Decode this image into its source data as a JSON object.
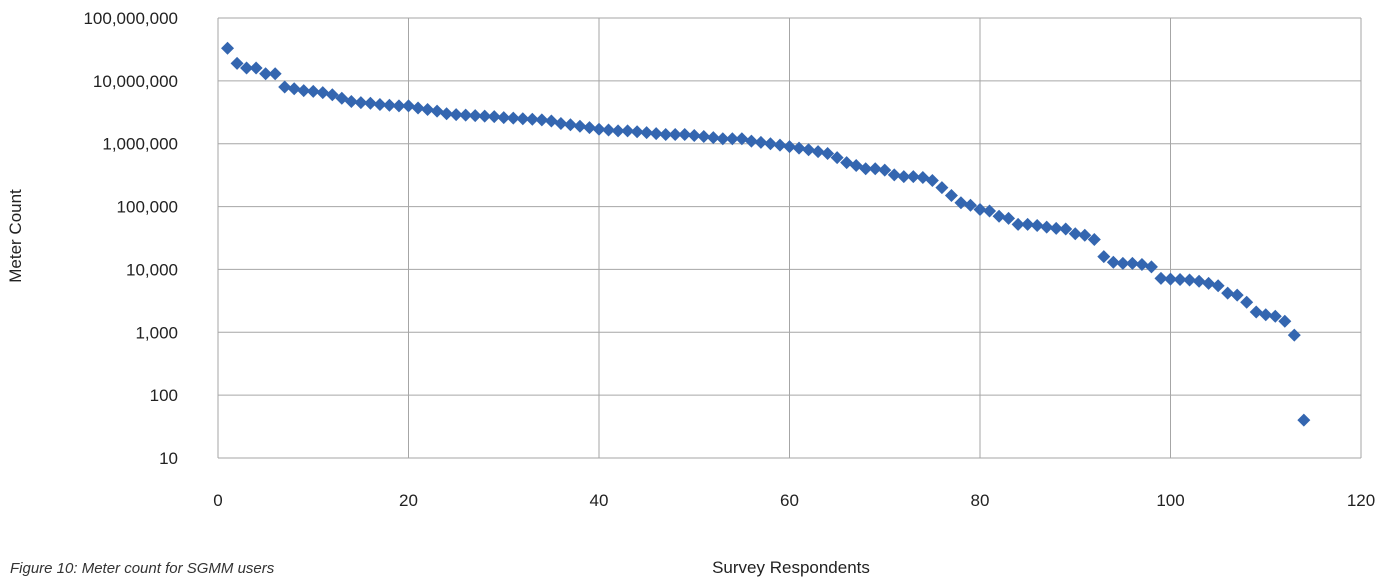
{
  "caption": "Figure 10: Meter count for SGMM users",
  "chart_data": {
    "type": "scatter",
    "xlabel": "Survey Respondents",
    "ylabel": "Meter Count",
    "y_scale": "log",
    "xlim": [
      0,
      120
    ],
    "ylim": [
      10,
      100000000
    ],
    "x_ticks": [
      0,
      20,
      40,
      60,
      80,
      100,
      120
    ],
    "x_tick_labels": [
      "0",
      "20",
      "40",
      "60",
      "80",
      "100",
      "120"
    ],
    "y_ticks": [
      10,
      100,
      1000,
      10000,
      100000,
      1000000,
      10000000,
      100000000
    ],
    "y_tick_labels": [
      "10",
      "100",
      "1,000",
      "10,000",
      "100,000",
      "1,000,000",
      "10,000,000",
      "100,000,000"
    ],
    "grid": true,
    "marker": "diamond",
    "color": "#3466B0",
    "points": [
      [
        1,
        33000000
      ],
      [
        2,
        19000000
      ],
      [
        3,
        16000000
      ],
      [
        4,
        16000000
      ],
      [
        5,
        13000000
      ],
      [
        6,
        13000000
      ],
      [
        7,
        8000000
      ],
      [
        8,
        7500000
      ],
      [
        9,
        7000000
      ],
      [
        10,
        6800000
      ],
      [
        11,
        6500000
      ],
      [
        12,
        6000000
      ],
      [
        13,
        5300000
      ],
      [
        14,
        4700000
      ],
      [
        15,
        4500000
      ],
      [
        16,
        4400000
      ],
      [
        17,
        4200000
      ],
      [
        18,
        4100000
      ],
      [
        19,
        4000000
      ],
      [
        20,
        4000000
      ],
      [
        21,
        3700000
      ],
      [
        22,
        3500000
      ],
      [
        23,
        3300000
      ],
      [
        24,
        3000000
      ],
      [
        25,
        2900000
      ],
      [
        26,
        2850000
      ],
      [
        27,
        2800000
      ],
      [
        28,
        2750000
      ],
      [
        29,
        2700000
      ],
      [
        30,
        2600000
      ],
      [
        31,
        2550000
      ],
      [
        32,
        2500000
      ],
      [
        33,
        2450000
      ],
      [
        34,
        2400000
      ],
      [
        35,
        2300000
      ],
      [
        36,
        2100000
      ],
      [
        37,
        2000000
      ],
      [
        38,
        1900000
      ],
      [
        39,
        1800000
      ],
      [
        40,
        1700000
      ],
      [
        41,
        1650000
      ],
      [
        42,
        1600000
      ],
      [
        43,
        1600000
      ],
      [
        44,
        1550000
      ],
      [
        45,
        1500000
      ],
      [
        46,
        1450000
      ],
      [
        47,
        1400000
      ],
      [
        48,
        1400000
      ],
      [
        49,
        1400000
      ],
      [
        50,
        1350000
      ],
      [
        51,
        1300000
      ],
      [
        52,
        1250000
      ],
      [
        53,
        1200000
      ],
      [
        54,
        1200000
      ],
      [
        55,
        1200000
      ],
      [
        56,
        1100000
      ],
      [
        57,
        1050000
      ],
      [
        58,
        1000000
      ],
      [
        59,
        950000
      ],
      [
        60,
        900000
      ],
      [
        61,
        850000
      ],
      [
        62,
        800000
      ],
      [
        63,
        750000
      ],
      [
        64,
        700000
      ],
      [
        65,
        600000
      ],
      [
        66,
        500000
      ],
      [
        67,
        450000
      ],
      [
        68,
        400000
      ],
      [
        69,
        400000
      ],
      [
        70,
        380000
      ],
      [
        71,
        320000
      ],
      [
        72,
        300000
      ],
      [
        73,
        300000
      ],
      [
        74,
        290000
      ],
      [
        75,
        260000
      ],
      [
        76,
        200000
      ],
      [
        77,
        150000
      ],
      [
        78,
        115000
      ],
      [
        79,
        105000
      ],
      [
        80,
        90000
      ],
      [
        81,
        85000
      ],
      [
        82,
        70000
      ],
      [
        83,
        65000
      ],
      [
        84,
        52000
      ],
      [
        85,
        52000
      ],
      [
        86,
        50000
      ],
      [
        87,
        47000
      ],
      [
        88,
        45000
      ],
      [
        89,
        44000
      ],
      [
        90,
        37000
      ],
      [
        91,
        35000
      ],
      [
        92,
        30000
      ],
      [
        93,
        16000
      ],
      [
        94,
        13000
      ],
      [
        95,
        12500
      ],
      [
        96,
        12500
      ],
      [
        97,
        12000
      ],
      [
        98,
        11000
      ],
      [
        99,
        7200
      ],
      [
        100,
        7000
      ],
      [
        101,
        6900
      ],
      [
        102,
        6800
      ],
      [
        103,
        6500
      ],
      [
        104,
        6000
      ],
      [
        105,
        5500
      ],
      [
        106,
        4200
      ],
      [
        107,
        3900
      ],
      [
        108,
        3000
      ],
      [
        109,
        2100
      ],
      [
        110,
        1900
      ],
      [
        111,
        1800
      ],
      [
        112,
        1500
      ],
      [
        113,
        900
      ],
      [
        114,
        40
      ]
    ]
  }
}
